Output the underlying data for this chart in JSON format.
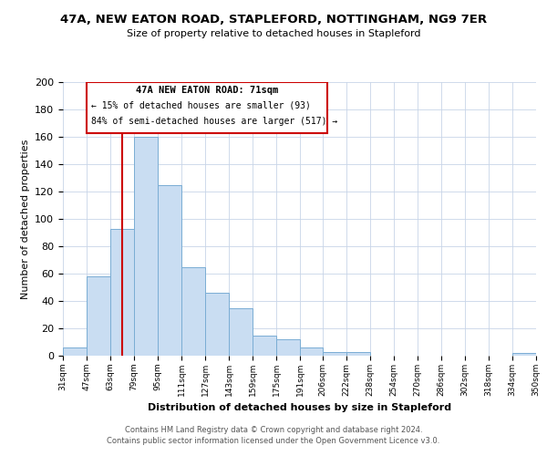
{
  "title": "47A, NEW EATON ROAD, STAPLEFORD, NOTTINGHAM, NG9 7ER",
  "subtitle": "Size of property relative to detached houses in Stapleford",
  "xlabel": "Distribution of detached houses by size in Stapleford",
  "ylabel": "Number of detached properties",
  "bar_color": "#c9ddf2",
  "bar_edge_color": "#7aadd4",
  "background_color": "#ffffff",
  "grid_color": "#c8d4e8",
  "annotation_box_color": "#cc0000",
  "annotation_line_color": "#cc0000",
  "property_line_x": 71,
  "annotation_title": "47A NEW EATON ROAD: 71sqm",
  "annotation_line1": "← 15% of detached houses are smaller (93)",
  "annotation_line2": "84% of semi-detached houses are larger (517) →",
  "bin_edges": [
    31,
    47,
    63,
    79,
    95,
    111,
    127,
    143,
    159,
    175,
    191,
    206,
    222,
    238,
    254,
    270,
    286,
    302,
    318,
    334,
    350
  ],
  "bin_labels": [
    "31sqm",
    "47sqm",
    "63sqm",
    "79sqm",
    "95sqm",
    "111sqm",
    "127sqm",
    "143sqm",
    "159sqm",
    "175sqm",
    "191sqm",
    "206sqm",
    "222sqm",
    "238sqm",
    "254sqm",
    "270sqm",
    "286sqm",
    "302sqm",
    "318sqm",
    "334sqm",
    "350sqm"
  ],
  "counts": [
    6,
    58,
    93,
    160,
    125,
    65,
    46,
    35,
    15,
    12,
    6,
    3,
    3,
    0,
    0,
    0,
    0,
    0,
    0,
    2
  ],
  "ylim": [
    0,
    200
  ],
  "yticks": [
    0,
    20,
    40,
    60,
    80,
    100,
    120,
    140,
    160,
    180,
    200
  ],
  "footer_line1": "Contains HM Land Registry data © Crown copyright and database right 2024.",
  "footer_line2": "Contains public sector information licensed under the Open Government Licence v3.0."
}
